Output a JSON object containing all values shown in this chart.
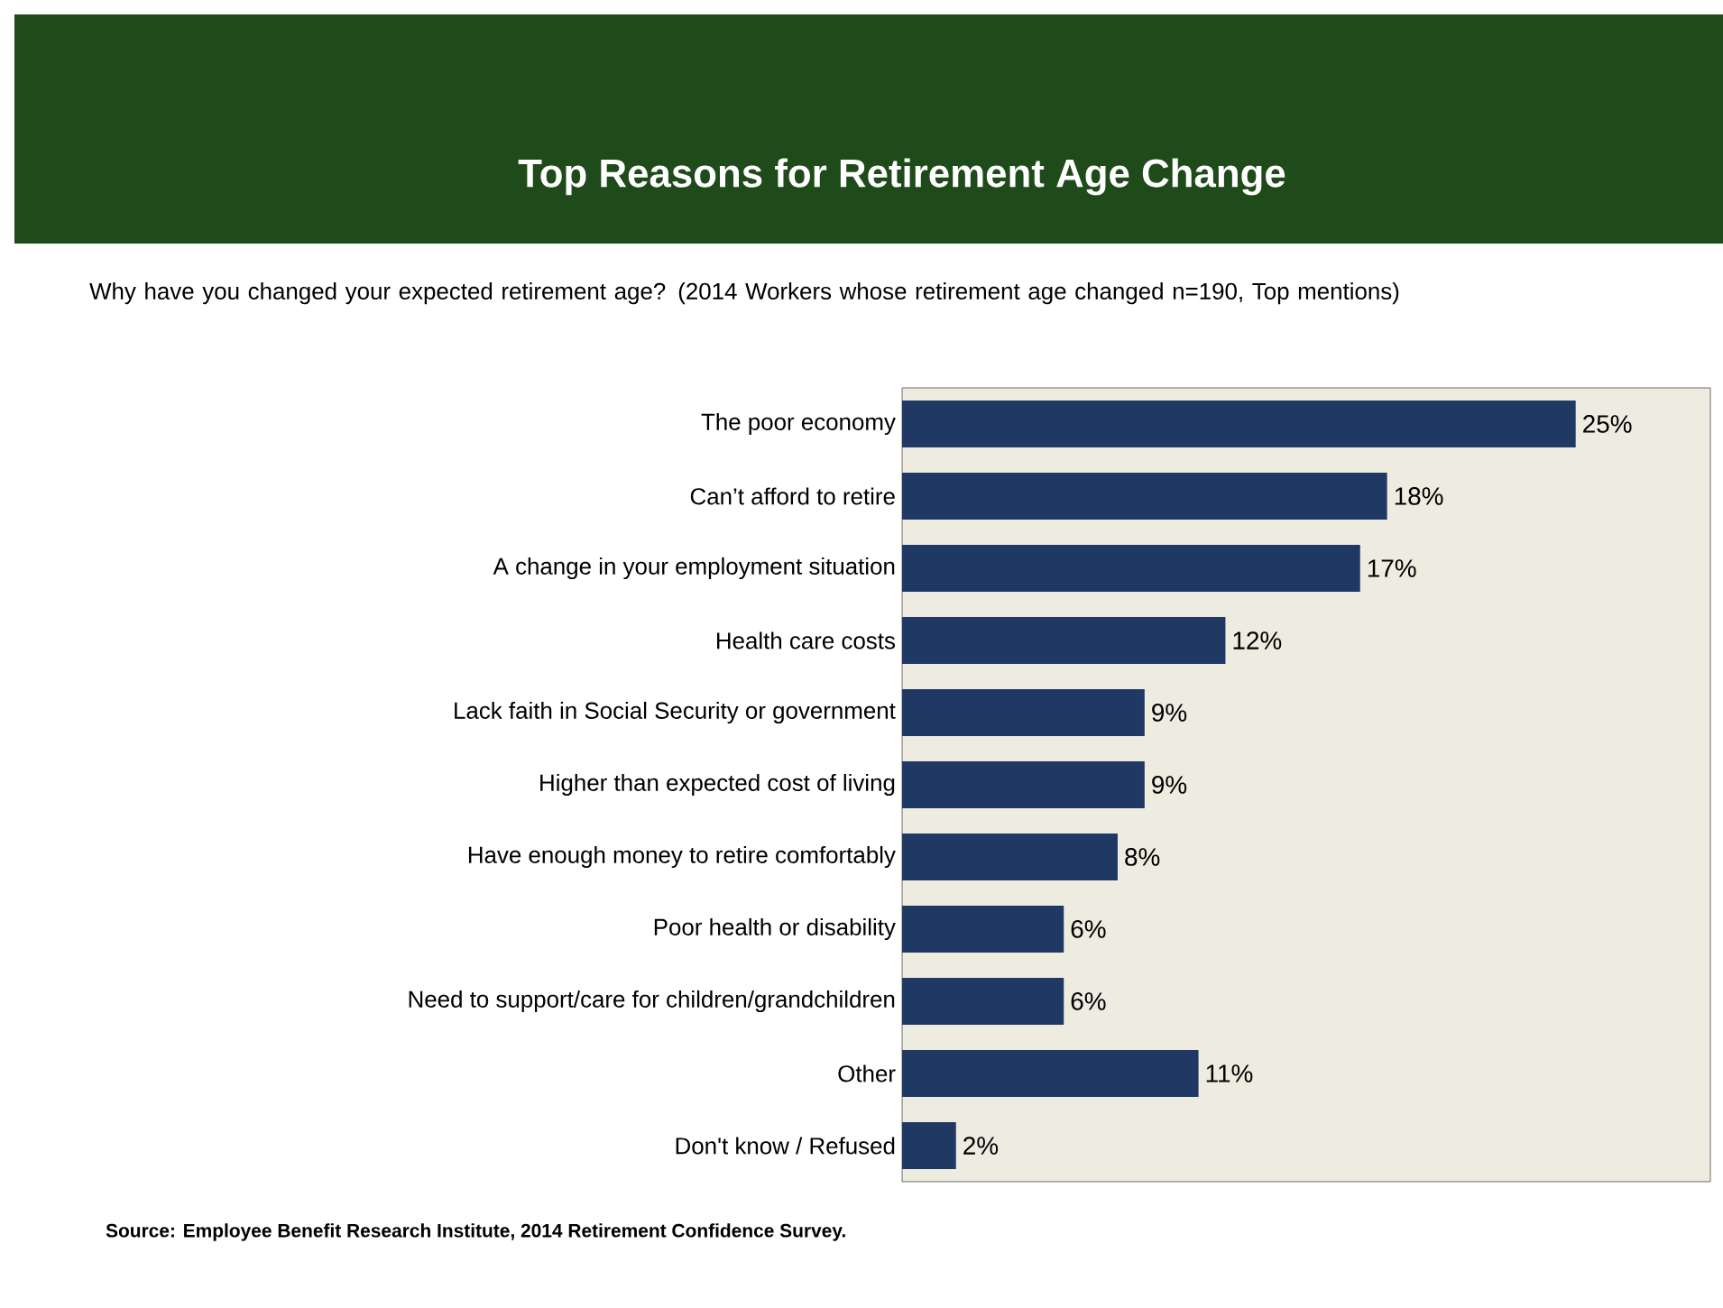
{
  "chart_data": {
    "type": "bar",
    "orientation": "horizontal",
    "title": "Top Reasons for Retirement Age Change",
    "subtitle": "Why have you changed your expected retirement age?  (2014 Workers whose retirement age changed n=190, Top mentions)",
    "categories": [
      "The poor economy",
      "Can’t afford to retire",
      "A change in your employment situation",
      "Health care costs",
      "Lack faith in Social Security or government",
      "Higher than expected cost of living",
      "Have enough money to retire comfortably",
      "Poor health or disability",
      "Need to support/care for children/grandchildren",
      "Other",
      "Don't know / Refused"
    ],
    "values": [
      25,
      18,
      17,
      12,
      9,
      9,
      8,
      6,
      6,
      11,
      2
    ],
    "value_labels": [
      "25%",
      "18%",
      "17%",
      "12%",
      "9%",
      "9%",
      "8%",
      "6%",
      "6%",
      "11%",
      "2%"
    ],
    "color": "#1f3864",
    "annotations": [
      "Source:  Employee Benefit Research Institute, 2014 Retirement Confidence Survey."
    ]
  }
}
